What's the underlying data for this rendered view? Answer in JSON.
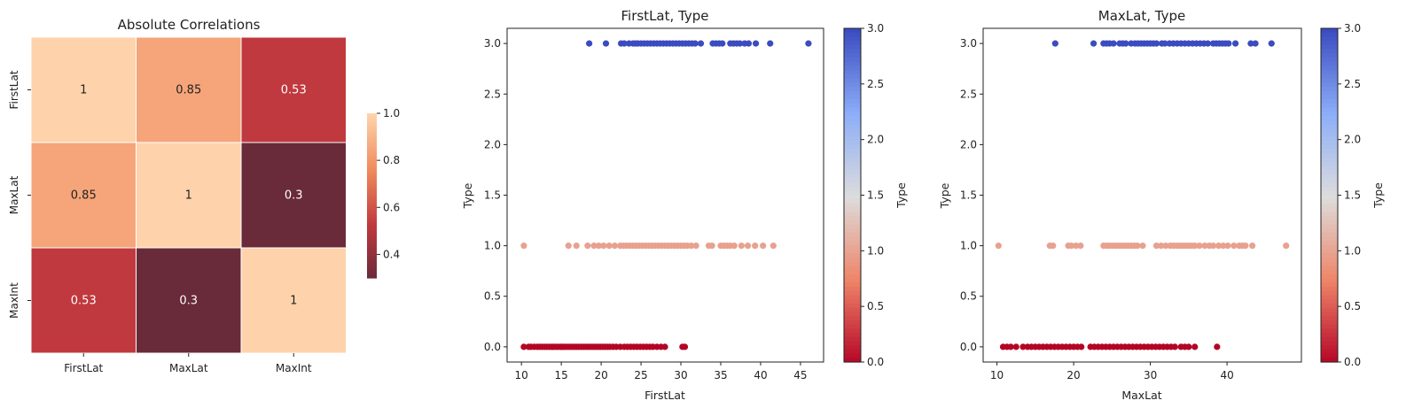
{
  "chart_data": [
    {
      "type": "heatmap",
      "title": "Absolute Correlations",
      "row_labels": [
        "FirstLat",
        "MaxLat",
        "MaxInt"
      ],
      "col_labels": [
        "FirstLat",
        "MaxLat",
        "MaxInt"
      ],
      "values": [
        [
          1,
          0.85,
          0.53
        ],
        [
          0.85,
          1,
          0.3
        ],
        [
          0.53,
          0.3,
          1
        ]
      ],
      "cell_labels": [
        [
          "1",
          "0.85",
          "0.53"
        ],
        [
          "0.85",
          "1",
          "0.3"
        ],
        [
          "0.53",
          "0.3",
          "1"
        ]
      ],
      "colorbar": {
        "range": [
          0.3,
          1.0
        ],
        "ticks": [
          "0.4",
          "0.6",
          "0.8",
          "1.0"
        ],
        "colormap": "rocket-faded"
      }
    },
    {
      "type": "scatter",
      "title": "FirstLat, Type",
      "xlabel": "FirstLat",
      "ylabel": "Type",
      "xlim": [
        8.2,
        47.9
      ],
      "ylim": [
        -0.15,
        3.15
      ],
      "xticks": [
        "10",
        "15",
        "20",
        "25",
        "30",
        "35",
        "40",
        "45"
      ],
      "yticks": [
        "0.0",
        "0.5",
        "1.0",
        "1.5",
        "2.0",
        "2.5",
        "3.0"
      ],
      "colorbar": {
        "label": "Type",
        "range": [
          0,
          3
        ],
        "ticks": [
          "0.0",
          "0.5",
          "1.0",
          "1.5",
          "2.0",
          "2.5",
          "3.0"
        ],
        "colormap": "coolwarm_r"
      },
      "series": [
        {
          "y": 0,
          "x": [
            10.3,
            10.9,
            11.2,
            11.6,
            12.0,
            12.3,
            12.6,
            12.9,
            13.2,
            13.5,
            13.8,
            14.0,
            14.3,
            14.6,
            14.9,
            15.1,
            15.4,
            15.7,
            16.0,
            16.3,
            16.6,
            16.9,
            17.2,
            17.5,
            17.8,
            18.1,
            18.4,
            18.7,
            19.0,
            19.3,
            19.6,
            19.9,
            20.2,
            20.5,
            20.8,
            21.1,
            21.5,
            21.9,
            22.4,
            22.9,
            23.3,
            23.7,
            24.1,
            24.5,
            24.9,
            25.3,
            25.7,
            26.1,
            26.5,
            27.0,
            27.5,
            28.0,
            30.2,
            30.5
          ]
        },
        {
          "y": 1,
          "x": [
            10.3,
            15.9,
            16.9,
            18.3,
            19.1,
            19.7,
            20.3,
            21.0,
            21.7,
            22.4,
            22.8,
            23.2,
            23.6,
            24.0,
            24.4,
            24.8,
            25.2,
            25.6,
            26.0,
            26.4,
            26.8,
            27.2,
            27.6,
            28.0,
            28.4,
            28.8,
            29.2,
            29.6,
            30.0,
            30.4,
            30.8,
            31.3,
            31.9,
            33.5,
            33.9,
            35.0,
            35.4,
            35.8,
            36.2,
            36.7,
            37.6,
            38.4,
            39.3,
            40.3,
            41.6
          ]
        },
        {
          "y": 3,
          "x": [
            18.5,
            20.6,
            22.5,
            22.9,
            23.5,
            24.0,
            24.3,
            24.6,
            25.0,
            25.4,
            25.8,
            26.2,
            26.6,
            27.0,
            27.4,
            27.8,
            28.2,
            28.6,
            29.0,
            29.4,
            29.8,
            30.2,
            30.6,
            31.0,
            31.4,
            31.8,
            32.5,
            34.0,
            34.4,
            34.8,
            35.2,
            36.2,
            36.6,
            37.0,
            37.4,
            38.0,
            38.5,
            39.4,
            41.2,
            46.0
          ]
        }
      ]
    },
    {
      "type": "scatter",
      "title": "MaxLat, Type",
      "xlabel": "MaxLat",
      "ylabel": "Type",
      "xlim": [
        8.2,
        49.7
      ],
      "ylim": [
        -0.15,
        3.15
      ],
      "xticks": [
        "10",
        "20",
        "30",
        "40"
      ],
      "yticks": [
        "0.0",
        "0.5",
        "1.0",
        "1.5",
        "2.0",
        "2.5",
        "3.0"
      ],
      "colorbar": {
        "label": "Type",
        "range": [
          0,
          3
        ],
        "ticks": [
          "0.0",
          "0.5",
          "1.0",
          "1.5",
          "2.0",
          "2.5",
          "3.0"
        ],
        "colormap": "coolwarm_r"
      },
      "series": [
        {
          "y": 0,
          "x": [
            10.8,
            11.3,
            11.8,
            12.5,
            13.4,
            14.0,
            14.5,
            15.0,
            15.5,
            16.0,
            16.5,
            17.0,
            17.5,
            18.0,
            18.5,
            19.0,
            19.5,
            20.0,
            20.5,
            21.0,
            22.2,
            22.7,
            23.2,
            23.7,
            24.2,
            24.7,
            25.2,
            25.7,
            26.2,
            26.7,
            27.2,
            27.7,
            28.2,
            28.7,
            29.2,
            29.7,
            30.2,
            30.7,
            31.2,
            31.7,
            32.2,
            32.7,
            33.2,
            34.0,
            34.5,
            35.0,
            35.8,
            38.7
          ]
        },
        {
          "y": 1,
          "x": [
            10.2,
            16.9,
            17.3,
            19.3,
            19.7,
            20.3,
            20.9,
            23.9,
            24.3,
            24.7,
            25.1,
            25.5,
            25.9,
            26.3,
            26.7,
            27.1,
            27.5,
            27.9,
            28.3,
            29.0,
            30.8,
            31.4,
            32.0,
            32.6,
            33.0,
            33.4,
            33.8,
            34.2,
            34.6,
            35.0,
            35.4,
            35.8,
            36.4,
            37.1,
            37.7,
            38.2,
            38.9,
            39.5,
            40.1,
            40.9,
            41.6,
            42.0,
            42.4,
            43.3,
            47.7
          ]
        },
        {
          "y": 3,
          "x": [
            17.6,
            22.6,
            23.9,
            24.3,
            24.7,
            25.2,
            26.0,
            26.4,
            26.8,
            27.5,
            28.0,
            28.4,
            28.8,
            29.2,
            29.6,
            30.0,
            30.4,
            30.8,
            31.5,
            31.9,
            32.5,
            33.0,
            33.5,
            34.0,
            34.5,
            35.0,
            35.5,
            36.0,
            36.5,
            37.0,
            37.5,
            38.2,
            38.6,
            39.0,
            39.4,
            39.8,
            40.2,
            41.1,
            43.1,
            43.7,
            45.8
          ]
        }
      ]
    }
  ]
}
